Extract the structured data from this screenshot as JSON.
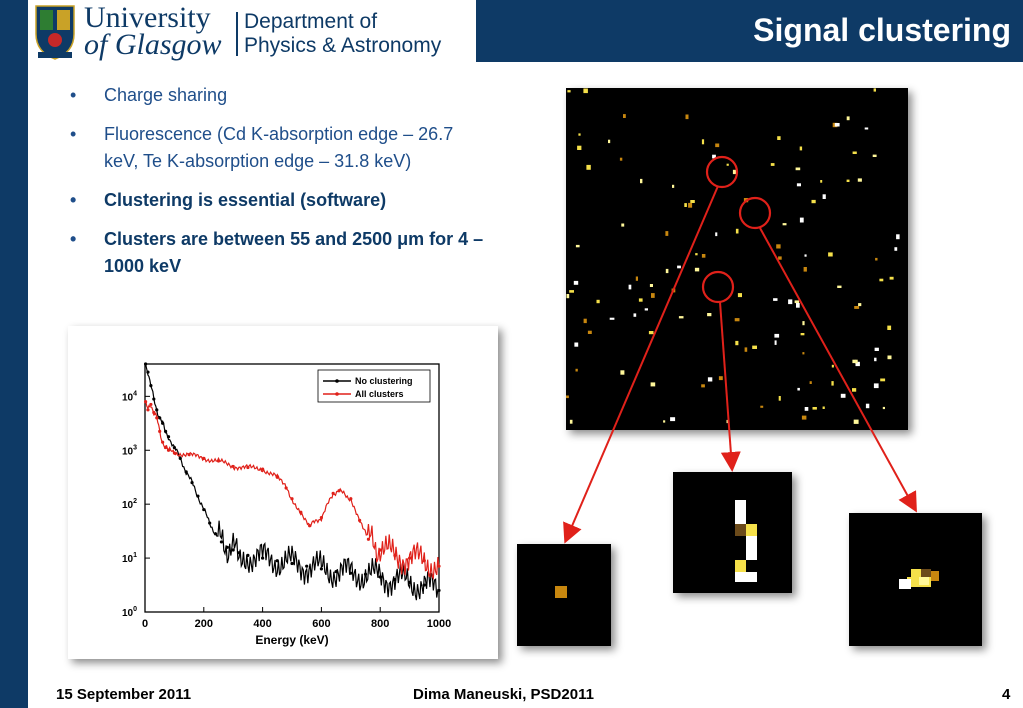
{
  "header": {
    "university_line1": "University",
    "university_line2": "of Glasgow",
    "department_line1": "Department of",
    "department_line2": "Physics & Astronomy",
    "title": "Signal clustering",
    "brand_color": "#0e3a66"
  },
  "bullets": [
    {
      "text": "Charge sharing",
      "bold": false
    },
    {
      "text": "Fluorescence (Cd K-absorption edge – 26.7 keV, Te K-absorption edge – 31.8 keV)",
      "bold": false
    },
    {
      "text": "Clustering is essential (software)",
      "bold": true
    },
    {
      "text": "Clusters are between 55 and 2500 μm for 4 – 1000 keV",
      "bold": true
    }
  ],
  "chart_data": {
    "type": "line",
    "xlabel": "Energy (keV)",
    "ylabel": "",
    "xlim": [
      0,
      1000
    ],
    "ylim_log10": [
      0,
      4.6
    ],
    "log_y": true,
    "x_ticks": [
      "0",
      "200",
      "400",
      "600",
      "800",
      "1000"
    ],
    "y_ticks": [
      {
        "base": "10",
        "exp": "0"
      },
      {
        "base": "10",
        "exp": "1"
      },
      {
        "base": "10",
        "exp": "2"
      },
      {
        "base": "10",
        "exp": "3"
      },
      {
        "base": "10",
        "exp": "4"
      }
    ],
    "legend_position": "top-right",
    "series": [
      {
        "name": "No clustering",
        "color": "#000000",
        "x": [
          2,
          10,
          20,
          30,
          40,
          50,
          60,
          70,
          80,
          100,
          120,
          140,
          160,
          180,
          200,
          220,
          240,
          260,
          280,
          300,
          320,
          350,
          400,
          450,
          500,
          550,
          600,
          650,
          700,
          750,
          800,
          850,
          900,
          950,
          1000
        ],
        "log10y": [
          4.6,
          4.45,
          4.2,
          3.95,
          3.75,
          3.6,
          3.5,
          3.35,
          3.25,
          3.05,
          2.85,
          2.6,
          2.4,
          2.15,
          1.9,
          1.65,
          1.45,
          1.3,
          1.2,
          1.15,
          1.1,
          1.05,
          1.0,
          0.95,
          0.9,
          0.85,
          0.8,
          0.75,
          0.72,
          0.7,
          0.65,
          0.6,
          0.55,
          0.5,
          0.4
        ]
      },
      {
        "name": "All clusters",
        "color": "#e0211a",
        "x": [
          2,
          10,
          20,
          30,
          40,
          50,
          60,
          70,
          80,
          100,
          150,
          200,
          250,
          300,
          350,
          400,
          450,
          480,
          500,
          530,
          560,
          600,
          640,
          660,
          700,
          730,
          760,
          800,
          850,
          900,
          950,
          1000
        ],
        "log10y": [
          3.9,
          3.75,
          3.85,
          3.7,
          3.6,
          3.35,
          3.15,
          3.05,
          3.0,
          2.95,
          2.92,
          2.85,
          2.8,
          2.7,
          2.68,
          2.65,
          2.5,
          2.3,
          2.1,
          1.85,
          1.6,
          1.75,
          2.2,
          2.25,
          2.1,
          1.7,
          1.35,
          1.15,
          1.05,
          1.0,
          0.95,
          0.85
        ]
      }
    ]
  },
  "footer": {
    "date": "15 September 2011",
    "author": "Dima Maneuski, PSD2011",
    "page": "4"
  },
  "annotation_color": "#e0211a"
}
